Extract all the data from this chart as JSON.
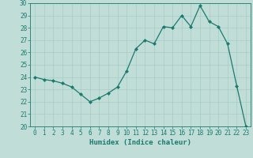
{
  "x": [
    0,
    1,
    2,
    3,
    4,
    5,
    6,
    7,
    8,
    9,
    10,
    11,
    12,
    13,
    14,
    15,
    16,
    17,
    18,
    19,
    20,
    21,
    22,
    23
  ],
  "y": [
    24.0,
    23.8,
    23.7,
    23.5,
    23.2,
    22.6,
    22.0,
    22.3,
    22.7,
    23.2,
    24.5,
    26.3,
    27.0,
    26.7,
    28.1,
    28.0,
    29.0,
    28.1,
    29.8,
    28.5,
    28.1,
    26.7,
    23.3,
    20.0
  ],
  "line_color": "#1a7a6e",
  "marker": "D",
  "marker_size": 2.0,
  "bg_color": "#c0ddd8",
  "grid_color": "#a8ccc8",
  "xlabel": "Humidex (Indice chaleur)",
  "ylim": [
    20,
    30
  ],
  "xlim": [
    -0.5,
    23.5
  ],
  "yticks": [
    20,
    21,
    22,
    23,
    24,
    25,
    26,
    27,
    28,
    29,
    30
  ],
  "xticks": [
    0,
    1,
    2,
    3,
    4,
    5,
    6,
    7,
    8,
    9,
    10,
    11,
    12,
    13,
    14,
    15,
    16,
    17,
    18,
    19,
    20,
    21,
    22,
    23
  ],
  "label_fontsize": 6.5,
  "tick_fontsize": 5.5
}
